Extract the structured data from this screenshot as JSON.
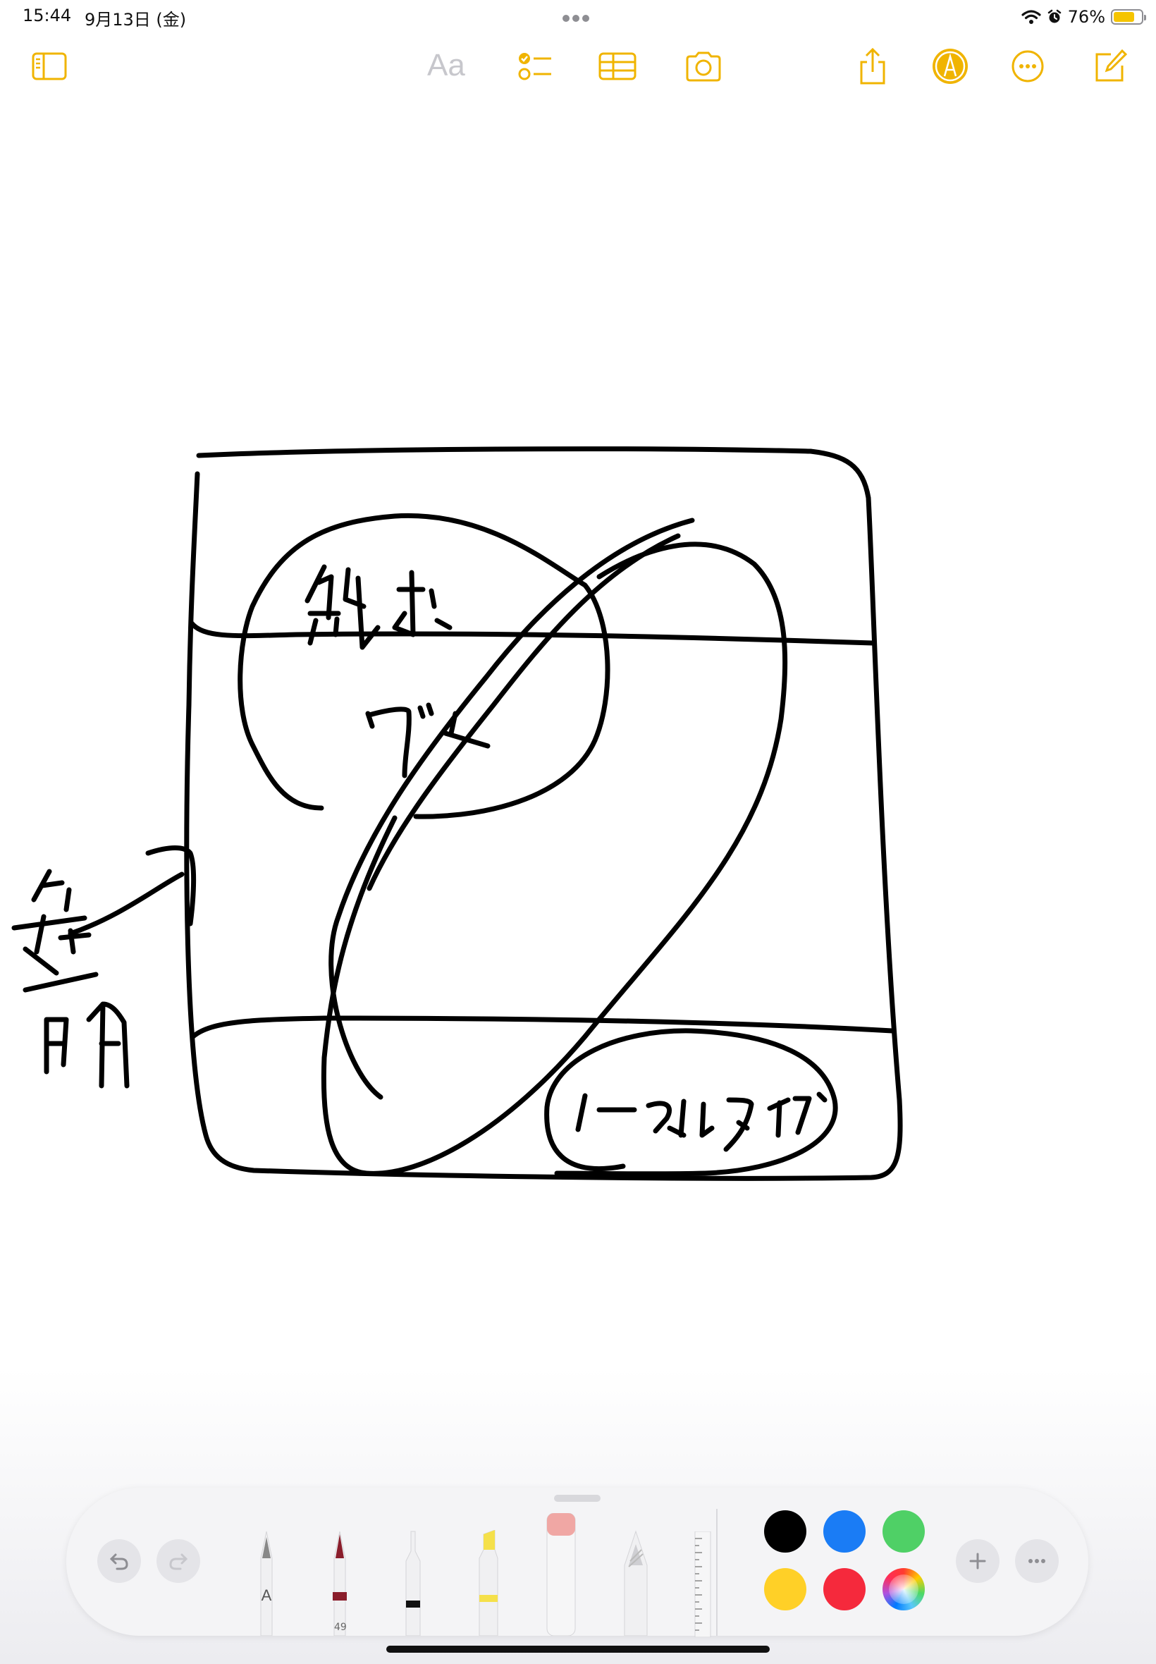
{
  "status_bar": {
    "time": "15:44",
    "date": "9月13日 (金)",
    "battery_percent_label": "76%",
    "battery_level": 0.76
  },
  "toolbar": {
    "format_label": "Aa",
    "accent_color": "#f0b400",
    "items": [
      {
        "name": "sidebar-toggle-icon"
      },
      {
        "name": "checklist-icon"
      },
      {
        "name": "table-icon"
      },
      {
        "name": "camera-icon"
      },
      {
        "name": "share-icon"
      },
      {
        "name": "markup-icon"
      },
      {
        "name": "more-icon"
      },
      {
        "name": "compose-icon"
      }
    ]
  },
  "palette": {
    "pen_ink_count": "49",
    "pencil_letter": "A",
    "colors": [
      "#000000",
      "#1a7cf5",
      "#4fd066",
      "#ffd027",
      "#f5293c",
      "rainbow"
    ],
    "tools": [
      "monoline-pen",
      "fountain-pen",
      "fineliner",
      "highlighter",
      "eraser",
      "pencil",
      "ruler"
    ]
  }
}
